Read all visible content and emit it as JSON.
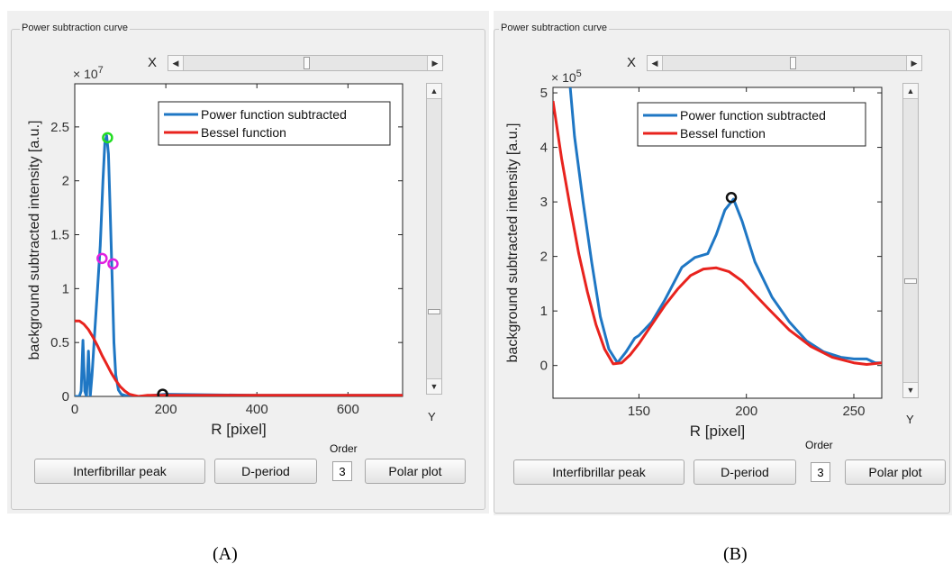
{
  "panel_a": {
    "group_title": "Power subtraction curve",
    "slider_x_label": "X",
    "slider_y_label": "Y",
    "order_label": "Order",
    "order_value": "3",
    "buttons": {
      "interfibrillar": "Interfibrillar peak",
      "dperiod": "D-period",
      "polar": "Polar plot"
    },
    "caption": "(A)"
  },
  "panel_b": {
    "group_title": "Power subtraction curve",
    "slider_x_label": "X",
    "slider_y_label": "Y",
    "order_label": "Order",
    "order_value": "3",
    "buttons": {
      "interfibrillar": "Interfibrillar peak",
      "dperiod": "D-period",
      "polar": "Polar plot"
    },
    "caption": "(B)"
  },
  "colors": {
    "power": "#1f77c4",
    "bessel": "#e8231e",
    "marker_green": "#22dd22",
    "marker_magenta": "#e020e0",
    "marker_black": "#111111"
  },
  "chart_data": [
    {
      "type": "line",
      "xlabel": "R [pixel]",
      "ylabel": "background subtracted intensity [a.u.]",
      "y_exponent_label": "× 10",
      "y_exponent": "7",
      "xlim": [
        0,
        720
      ],
      "ylim": [
        0,
        2.9
      ],
      "xticks": [
        0,
        200,
        400,
        600
      ],
      "yticks": [
        0,
        0.5,
        1,
        1.5,
        2,
        2.5
      ],
      "legend": "top-right",
      "series": [
        {
          "name": "Power function subtracted",
          "color": "#1f77c4",
          "x": [
            0,
            10,
            14,
            18,
            22,
            26,
            30,
            34,
            38,
            44,
            50,
            56,
            62,
            66,
            70,
            74,
            78,
            82,
            86,
            90,
            96,
            102,
            110,
            120,
            140,
            200,
            400,
            720
          ],
          "y": [
            0,
            0,
            0.05,
            0.52,
            0.05,
            0,
            0.42,
            0,
            0.2,
            0.6,
            1.0,
            1.4,
            2.0,
            2.35,
            2.42,
            2.25,
            1.7,
            1.1,
            0.5,
            0.2,
            0.06,
            0.02,
            0.01,
            0,
            0,
            0.02,
            0.01,
            0.01
          ]
        },
        {
          "name": "Bessel function",
          "color": "#e8231e",
          "x": [
            0,
            10,
            20,
            30,
            40,
            50,
            60,
            70,
            80,
            90,
            100,
            110,
            120,
            130,
            140,
            160,
            200,
            400,
            720
          ],
          "y": [
            0.7,
            0.7,
            0.67,
            0.62,
            0.55,
            0.47,
            0.38,
            0.3,
            0.22,
            0.15,
            0.09,
            0.05,
            0.02,
            0.01,
            0,
            0.01,
            0.01,
            0.01,
            0.01
          ]
        }
      ],
      "markers": [
        {
          "x": 72,
          "y": 2.4,
          "color": "#22dd22"
        },
        {
          "x": 60,
          "y": 1.28,
          "color": "#e020e0"
        },
        {
          "x": 84,
          "y": 1.23,
          "color": "#e020e0"
        },
        {
          "x": 193,
          "y": 0.02,
          "color": "#111111"
        }
      ]
    },
    {
      "type": "line",
      "xlabel": "R [pixel]",
      "ylabel": "background subtracted intensity [a.u.]",
      "y_exponent_label": "× 10",
      "y_exponent": "5",
      "xlim": [
        110,
        263
      ],
      "ylim": [
        -0.6,
        5.1
      ],
      "xticks": [
        150,
        200,
        250
      ],
      "yticks": [
        0,
        1,
        2,
        3,
        4,
        5
      ],
      "legend": "top-right",
      "series": [
        {
          "name": "Power function subtracted",
          "color": "#1f77c4",
          "x": [
            118,
            120,
            124,
            128,
            132,
            136,
            140,
            144,
            148,
            150,
            156,
            162,
            166,
            170,
            176,
            182,
            186,
            190,
            194,
            198,
            204,
            212,
            220,
            228,
            236,
            244,
            250,
            256,
            260,
            263
          ],
          "y": [
            5.1,
            4.2,
            3.0,
            1.9,
            0.9,
            0.3,
            0.05,
            0.25,
            0.5,
            0.55,
            0.8,
            1.2,
            1.5,
            1.8,
            1.98,
            2.05,
            2.4,
            2.85,
            3.05,
            2.65,
            1.9,
            1.25,
            0.8,
            0.45,
            0.25,
            0.15,
            0.12,
            0.12,
            0.05,
            0.05
          ]
        },
        {
          "name": "Bessel function",
          "color": "#e8231e",
          "x": [
            110,
            114,
            118,
            122,
            126,
            130,
            134,
            138,
            142,
            146,
            150,
            156,
            162,
            168,
            174,
            180,
            186,
            192,
            198,
            204,
            210,
            220,
            230,
            240,
            250,
            256,
            263
          ],
          "y": [
            4.85,
            3.8,
            2.9,
            2.05,
            1.35,
            0.75,
            0.3,
            0.03,
            0.05,
            0.2,
            0.4,
            0.75,
            1.1,
            1.4,
            1.65,
            1.77,
            1.79,
            1.72,
            1.55,
            1.3,
            1.05,
            0.65,
            0.35,
            0.15,
            0.05,
            0.02,
            0.05
          ]
        }
      ],
      "markers": [
        {
          "x": 193,
          "y": 3.08,
          "color": "#111111"
        }
      ]
    }
  ]
}
